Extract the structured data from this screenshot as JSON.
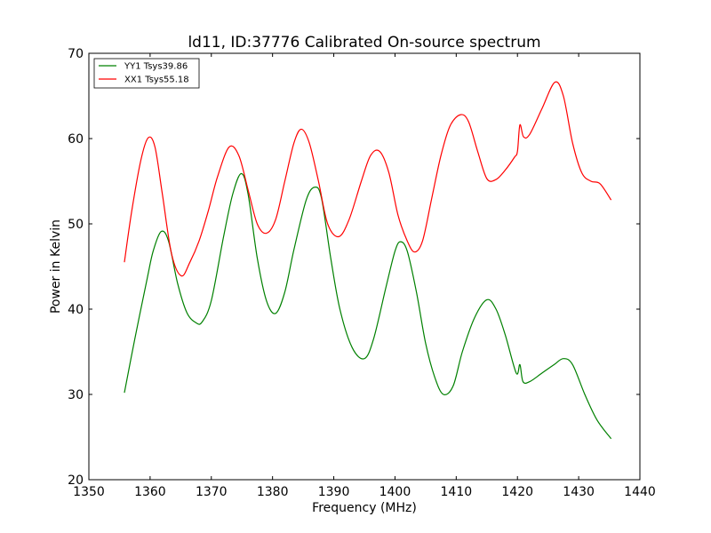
{
  "chart_data": {
    "type": "line",
    "title": "ld11, ID:37776 Calibrated On-source spectrum",
    "xlabel": "Frequency (MHz)",
    "ylabel": "Power in Kelvin",
    "xlim": [
      1350,
      1440
    ],
    "ylim": [
      20,
      70
    ],
    "xticks": [
      1350,
      1360,
      1370,
      1380,
      1390,
      1400,
      1410,
      1420,
      1430,
      1440
    ],
    "yticks": [
      20,
      30,
      40,
      50,
      60,
      70
    ],
    "grid": false,
    "legend_position": "top-left",
    "series": [
      {
        "name": "YY1 Tsys39.86",
        "color": "#008000",
        "x": [
          1355.8,
          1357.5,
          1359.5,
          1360.5,
          1361.8,
          1363.0,
          1364.5,
          1366.0,
          1367.5,
          1368.5,
          1370.0,
          1372.0,
          1373.5,
          1374.9,
          1376.0,
          1377.5,
          1379.0,
          1380.5,
          1382.0,
          1383.5,
          1385.5,
          1386.9,
          1388.0,
          1389.5,
          1391.0,
          1393.0,
          1395.0,
          1396.5,
          1398.5,
          1400.0,
          1400.9,
          1402.0,
          1403.5,
          1405.0,
          1406.5,
          1407.9,
          1409.5,
          1411.0,
          1413.0,
          1415.0,
          1416.5,
          1418.0,
          1419.8,
          1420.4,
          1420.9,
          1422.0,
          1424.0,
          1426.0,
          1427.5,
          1429.0,
          1431.0,
          1433.0,
          1435.3
        ],
        "values": [
          30.2,
          36.5,
          43.5,
          46.8,
          49.1,
          48.0,
          43.0,
          39.6,
          38.4,
          38.5,
          41.0,
          48.5,
          53.5,
          55.9,
          53.5,
          46.0,
          41.0,
          39.5,
          42.0,
          47.0,
          52.8,
          54.3,
          53.0,
          46.0,
          40.0,
          35.5,
          34.2,
          36.5,
          42.5,
          46.8,
          47.9,
          46.8,
          42.0,
          36.0,
          32.0,
          30.0,
          31.0,
          35.0,
          39.0,
          41.1,
          40.0,
          37.0,
          32.5,
          33.5,
          31.5,
          31.5,
          32.5,
          33.5,
          34.2,
          33.5,
          30.0,
          27.0,
          24.8
        ]
      },
      {
        "name": "XX1 Tsys55.18",
        "color": "#ff0000",
        "x": [
          1355.8,
          1357.0,
          1358.5,
          1359.7,
          1360.8,
          1362.0,
          1363.5,
          1365.1,
          1366.5,
          1368.0,
          1369.5,
          1371.0,
          1372.9,
          1374.5,
          1376.0,
          1377.5,
          1379.0,
          1380.5,
          1382.0,
          1383.5,
          1384.7,
          1386.0,
          1387.5,
          1389.0,
          1390.8,
          1392.5,
          1394.5,
          1396.0,
          1397.5,
          1399.0,
          1400.5,
          1402.0,
          1403.2,
          1404.5,
          1406.0,
          1407.5,
          1409.0,
          1410.7,
          1412.0,
          1413.5,
          1415.0,
          1416.5,
          1418.0,
          1419.5,
          1420.0,
          1420.4,
          1421.0,
          1422.0,
          1424.0,
          1426.1,
          1427.5,
          1429.0,
          1430.5,
          1432.0,
          1433.5,
          1435.3
        ],
        "values": [
          45.5,
          51.5,
          57.5,
          60.1,
          59.0,
          53.5,
          46.5,
          43.9,
          45.5,
          48.0,
          51.5,
          55.5,
          59.0,
          58.0,
          54.0,
          50.0,
          48.9,
          50.5,
          55.0,
          59.5,
          61.1,
          59.5,
          55.0,
          50.0,
          48.5,
          50.5,
          55.0,
          58.0,
          58.5,
          56.0,
          51.0,
          48.0,
          46.7,
          48.0,
          53.0,
          58.0,
          61.5,
          62.8,
          62.0,
          58.5,
          55.3,
          55.2,
          56.3,
          57.8,
          58.5,
          61.6,
          60.2,
          60.5,
          63.5,
          66.6,
          65.0,
          59.5,
          56.0,
          55.0,
          54.7,
          52.8
        ]
      }
    ]
  }
}
